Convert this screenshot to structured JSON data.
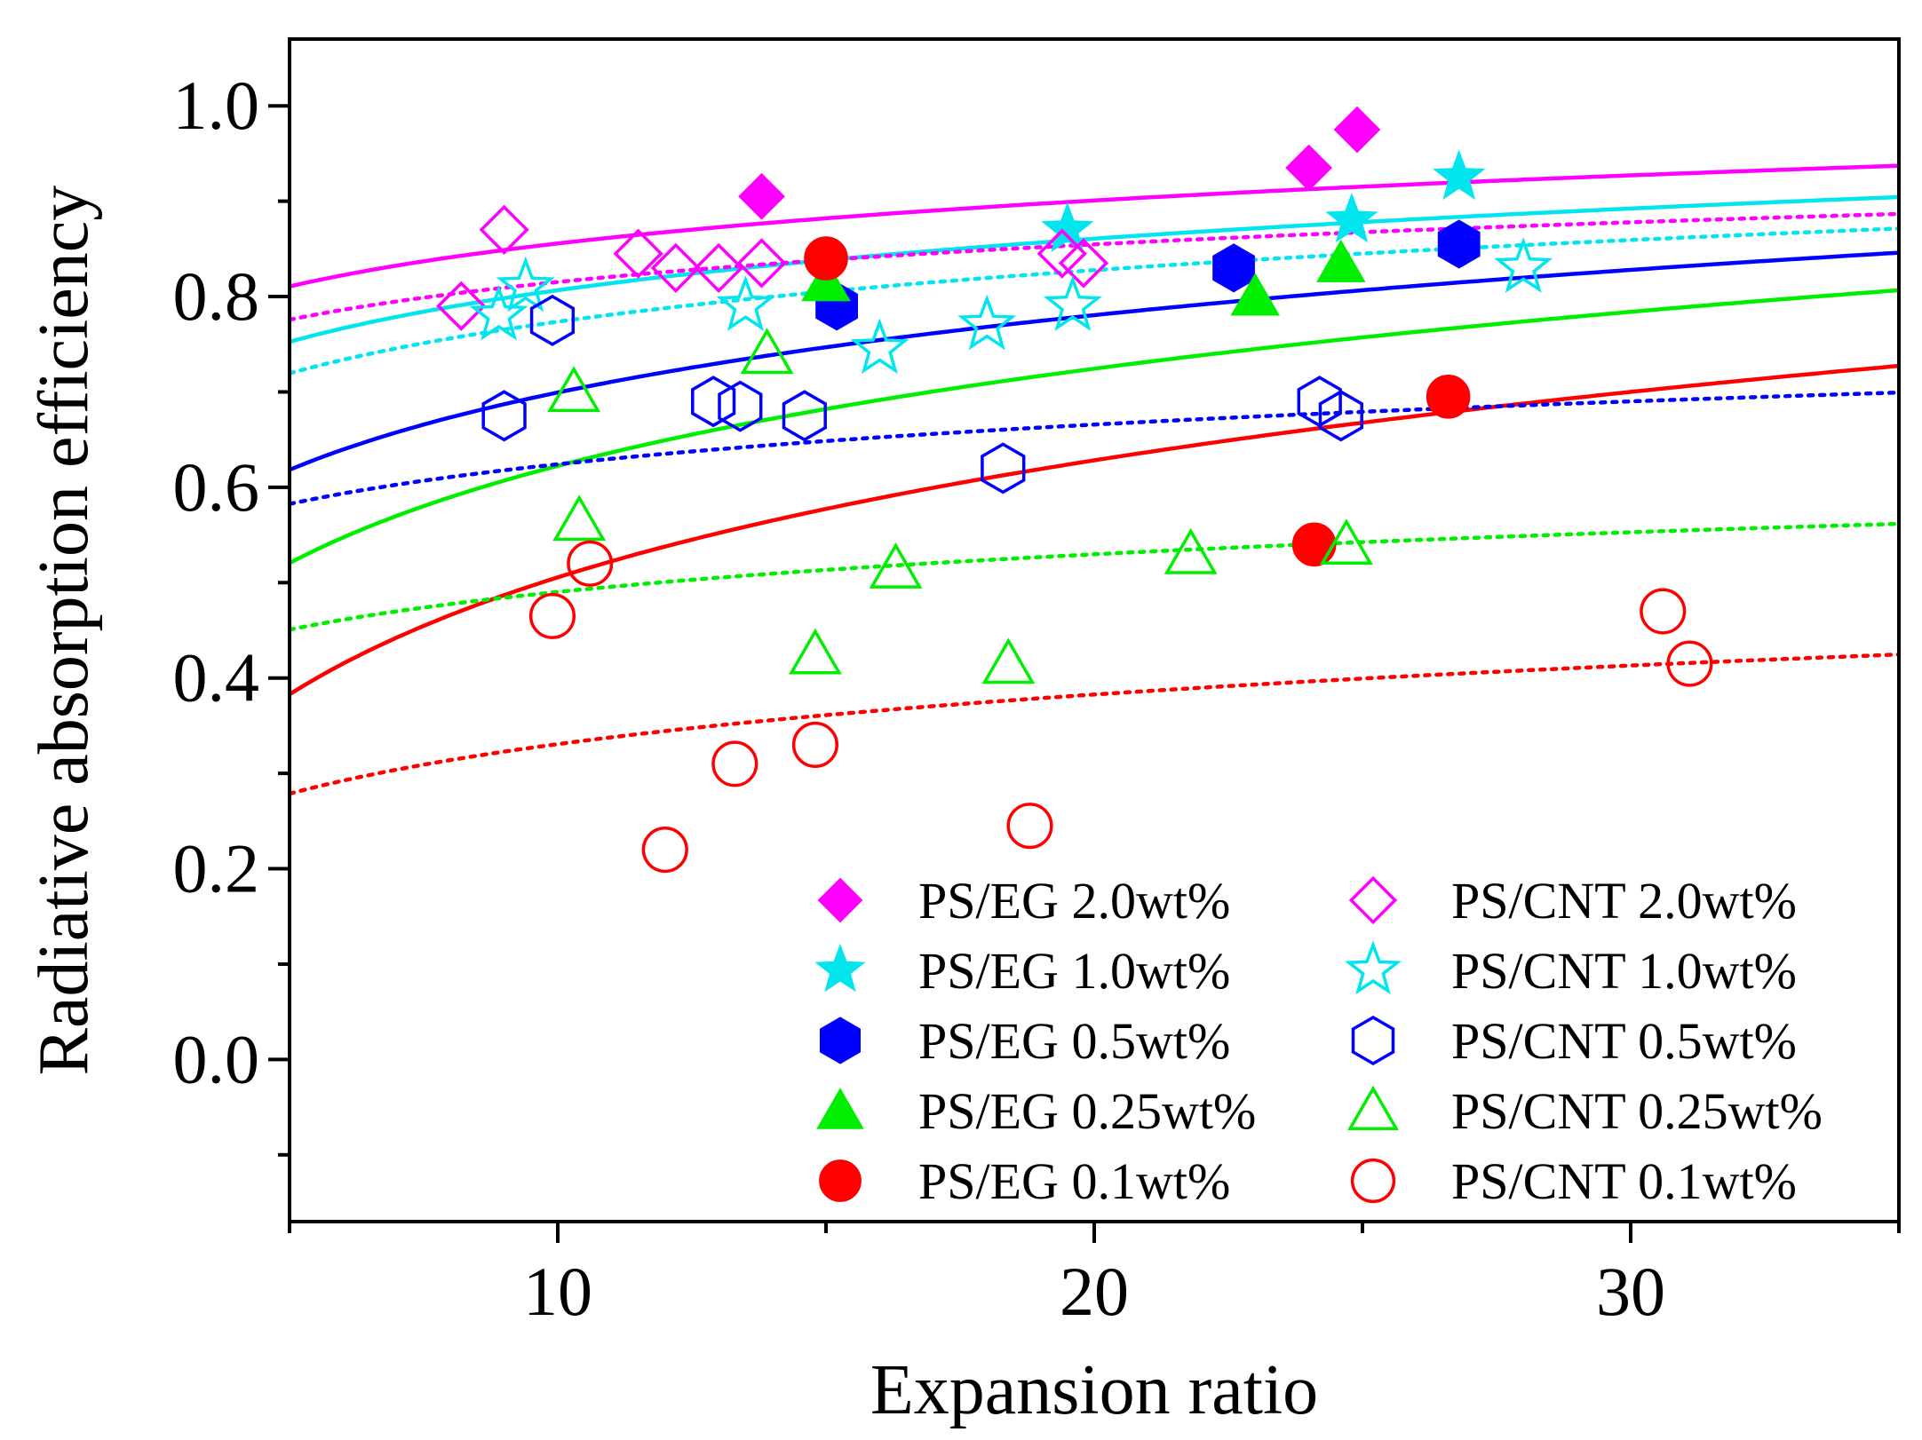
{
  "chart_data": {
    "type": "scatter",
    "title": "",
    "xlabel": "Expansion ratio",
    "ylabel": "Radiative absorption efficiency",
    "xlim": [
      5,
      35
    ],
    "ylim": [
      -0.17,
      1.07
    ],
    "xticks": [
      10,
      20,
      30
    ],
    "xtick_labels": [
      "10",
      "20",
      "30"
    ],
    "yticks": [
      0.0,
      0.2,
      0.4,
      0.6,
      0.8,
      1.0
    ],
    "ytick_labels": [
      "0.0",
      "0.2",
      "0.4",
      "0.6",
      "0.8",
      "1.0"
    ],
    "grid": false,
    "legend_position": "bottom-right",
    "series": [
      {
        "name": "PS/EG 2.0wt%",
        "marker": "diamond",
        "filled": true,
        "color": "#ff00ff",
        "x": [
          13.8,
          24.0,
          24.9
        ],
        "y": [
          0.905,
          0.935,
          0.975
        ],
        "fit": {
          "style": "solid",
          "a": 0.706,
          "b": 0.065
        }
      },
      {
        "name": "PS/EG 1.0wt%",
        "marker": "star",
        "filled": true,
        "color": "#00e5ee",
        "x": [
          19.5,
          24.8,
          26.8
        ],
        "y": [
          0.87,
          0.88,
          0.925
        ],
        "fit": {
          "style": "solid",
          "a": 0.627,
          "b": 0.078
        }
      },
      {
        "name": "PS/EG 0.5wt%",
        "marker": "hexagon",
        "filled": true,
        "color": "#0000ff",
        "x": [
          15.2,
          22.6,
          26.8
        ],
        "y": [
          0.79,
          0.83,
          0.855
        ],
        "fit": {
          "style": "solid",
          "a": 0.43,
          "b": 0.117
        }
      },
      {
        "name": "PS/EG 0.25wt%",
        "marker": "triangle",
        "filled": true,
        "color": "#00ee00",
        "x": [
          15.0,
          23.0,
          24.6
        ],
        "y": [
          0.815,
          0.8,
          0.835
        ],
        "fit": {
          "style": "solid",
          "a": 0.284,
          "b": 0.147
        }
      },
      {
        "name": "PS/EG 0.1wt%",
        "marker": "circle",
        "filled": true,
        "color": "#ff0000",
        "x": [
          15.0,
          24.1,
          26.6
        ],
        "y": [
          0.84,
          0.54,
          0.695
        ],
        "fit": {
          "style": "solid",
          "a": 0.098,
          "b": 0.177
        }
      },
      {
        "name": "PS/CNT 2.0wt%",
        "marker": "diamond",
        "filled": false,
        "color": "#ff00ff",
        "x": [
          8.2,
          9.0,
          11.5,
          12.2,
          13.0,
          13.8,
          19.4,
          19.8
        ],
        "y": [
          0.79,
          0.87,
          0.845,
          0.83,
          0.83,
          0.835,
          0.845,
          0.835
        ],
        "fit": {
          "style": "dotted",
          "a": 0.684,
          "b": 0.057
        }
      },
      {
        "name": "PS/CNT 1.0wt%",
        "marker": "star",
        "filled": false,
        "color": "#00e5ee",
        "x": [
          8.9,
          9.4,
          13.5,
          16.0,
          18.0,
          19.6,
          28.0
        ],
        "y": [
          0.78,
          0.81,
          0.79,
          0.745,
          0.77,
          0.79,
          0.83
        ],
        "fit": {
          "style": "dotted",
          "a": 0.594,
          "b": 0.078
        }
      },
      {
        "name": "PS/CNT 0.5wt%",
        "marker": "hexagon",
        "filled": false,
        "color": "#0000ff",
        "x": [
          9.0,
          9.9,
          12.9,
          13.4,
          14.6,
          18.3,
          24.2,
          24.6
        ],
        "y": [
          0.675,
          0.775,
          0.69,
          0.685,
          0.675,
          0.62,
          0.69,
          0.675
        ],
        "fit": {
          "style": "dotted",
          "a": 0.486,
          "b": 0.06
        }
      },
      {
        "name": "PS/CNT 0.25wt%",
        "marker": "triangle",
        "filled": false,
        "color": "#00ee00",
        "x": [
          10.3,
          10.4,
          13.9,
          14.8,
          16.3,
          18.4,
          21.8,
          24.7
        ],
        "y": [
          0.7,
          0.565,
          0.74,
          0.425,
          0.515,
          0.415,
          0.53,
          0.54
        ],
        "fit": {
          "style": "dotted",
          "a": 0.359,
          "b": 0.057
        }
      },
      {
        "name": "PS/CNT 0.1wt%",
        "marker": "circle",
        "filled": false,
        "color": "#ff0000",
        "x": [
          9.9,
          10.6,
          12.0,
          13.3,
          14.8,
          18.8,
          30.6,
          31.1
        ],
        "y": [
          0.465,
          0.52,
          0.22,
          0.31,
          0.33,
          0.245,
          0.47,
          0.415
        ],
        "fit": {
          "style": "dotted",
          "a": 0.158,
          "b": 0.075
        }
      }
    ]
  }
}
